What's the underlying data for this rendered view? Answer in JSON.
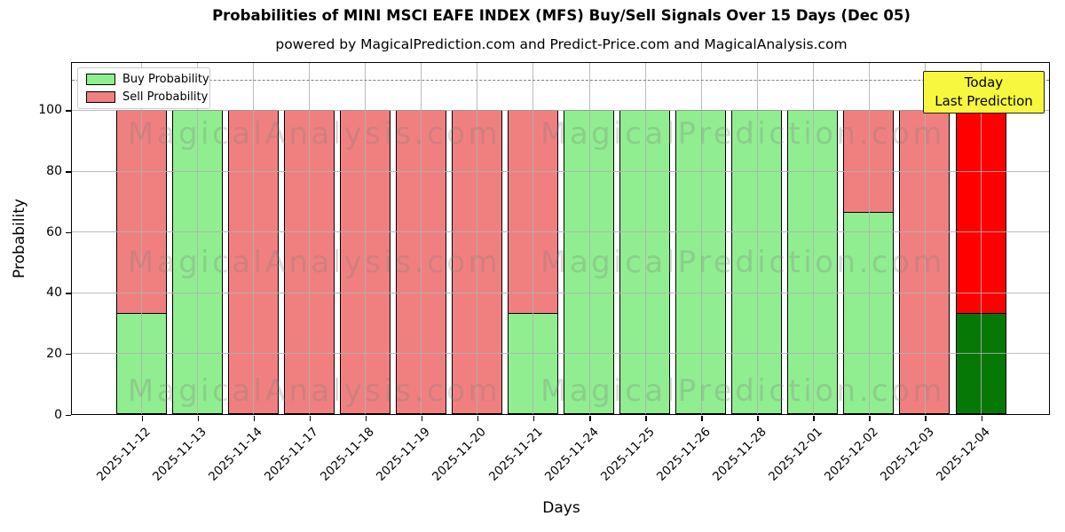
{
  "title": "Probabilities of MINI MSCI EAFE INDEX (MFS) Buy/Sell Signals Over 15 Days (Dec 05)",
  "subtitle": "powered by MagicalPrediction.com and Predict-Price.com and MagicalAnalysis.com",
  "chart_data": {
    "type": "bar",
    "stacked": true,
    "title": "Probabilities of MINI MSCI EAFE INDEX (MFS) Buy/Sell Signals Over 15 Days (Dec 05)",
    "xlabel": "Days",
    "ylabel": "Probability",
    "categories": [
      "2025-11-12",
      "2025-11-13",
      "2025-11-14",
      "2025-11-17",
      "2025-11-18",
      "2025-11-19",
      "2025-11-20",
      "2025-11-21",
      "2025-11-24",
      "2025-11-25",
      "2025-11-26",
      "2025-11-28",
      "2025-12-01",
      "2025-12-02",
      "2025-12-03",
      "2025-12-04"
    ],
    "series": [
      {
        "name": "Buy Probability",
        "color": "#90EE90",
        "values": [
          33.33,
          100,
          0,
          0,
          0,
          0,
          0,
          33.33,
          100,
          100,
          100,
          100,
          100,
          66.67,
          0,
          33.33
        ]
      },
      {
        "name": "Sell Probability",
        "color": "#F08080",
        "values": [
          66.67,
          0,
          100,
          100,
          100,
          100,
          100,
          66.67,
          0,
          0,
          0,
          0,
          0,
          33.33,
          100,
          66.67
        ]
      }
    ],
    "today_index": 15,
    "today_buy_color": "#067806",
    "today_sell_color": "#FF0000",
    "yticks": [
      0,
      20,
      40,
      60,
      80,
      100
    ],
    "ylim": [
      0,
      115.45
    ],
    "dashed_line_y": 110,
    "grid": true,
    "legend_position": "upper-left",
    "annotation": {
      "lines": [
        "Today",
        "Last Prediction"
      ],
      "bg_color": "#f7f73f"
    },
    "watermarks": [
      "MagicalAnalysis.com",
      "MagicalPrediction.com"
    ]
  }
}
